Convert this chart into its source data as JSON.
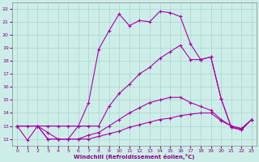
{
  "xlabel": "Windchill (Refroidissement éolien,°C)",
  "xlim": [
    -0.5,
    23.5
  ],
  "ylim": [
    11.5,
    22.5
  ],
  "yticks": [
    12,
    13,
    14,
    15,
    16,
    17,
    18,
    19,
    20,
    21,
    22
  ],
  "xticks": [
    0,
    1,
    2,
    3,
    4,
    5,
    6,
    7,
    8,
    9,
    10,
    11,
    12,
    13,
    14,
    15,
    16,
    17,
    18,
    19,
    20,
    21,
    22,
    23
  ],
  "background_color": "#cdeee8",
  "grid_color": "#aad4cc",
  "line_color": "#aa00aa",
  "line1_x": [
    0,
    1,
    2,
    3,
    4,
    5,
    6,
    7,
    8,
    9,
    10,
    11,
    12,
    13,
    14,
    15,
    16,
    17,
    18,
    19,
    20,
    21,
    22,
    23
  ],
  "line1_y": [
    13,
    11.9,
    13,
    12,
    12,
    12,
    13,
    14.8,
    18.9,
    20.3,
    21.6,
    20.7,
    21.1,
    21.0,
    21.8,
    21.7,
    21.4,
    19.3,
    18.1,
    18.3,
    15.1,
    12.9,
    12.7,
    13.5
  ],
  "line2_x": [
    0,
    1,
    2,
    3,
    4,
    5,
    6,
    7,
    8,
    9,
    10,
    11,
    12,
    13,
    14,
    15,
    16,
    17,
    18,
    19,
    20,
    21,
    22,
    23
  ],
  "line2_y": [
    13,
    13,
    13,
    13,
    13,
    13,
    13,
    13,
    13,
    14.5,
    15.5,
    16.2,
    17.0,
    17.5,
    18.2,
    18.7,
    19.2,
    18.1,
    18.1,
    18.3,
    15.1,
    12.9,
    12.7,
    13.5
  ],
  "line3_x": [
    0,
    2,
    3,
    4,
    5,
    6,
    7,
    8,
    9,
    10,
    11,
    12,
    13,
    14,
    15,
    16,
    17,
    18,
    19,
    20,
    21,
    22,
    23
  ],
  "line3_y": [
    13,
    13,
    12.5,
    12,
    12,
    12,
    12.3,
    12.5,
    13,
    13.5,
    14.0,
    14.4,
    14.8,
    15.0,
    15.2,
    15.2,
    14.8,
    14.5,
    14.2,
    13.5,
    13.0,
    12.8,
    13.5
  ],
  "line4_x": [
    0,
    2,
    3,
    4,
    5,
    6,
    7,
    8,
    9,
    10,
    11,
    12,
    13,
    14,
    15,
    16,
    17,
    18,
    19,
    20,
    21,
    22,
    23
  ],
  "line4_y": [
    13,
    13,
    12,
    12,
    12,
    12,
    12,
    12.2,
    12.4,
    12.6,
    12.9,
    13.1,
    13.3,
    13.5,
    13.6,
    13.8,
    13.9,
    14.0,
    14.0,
    13.4,
    13.0,
    12.8,
    13.5
  ]
}
